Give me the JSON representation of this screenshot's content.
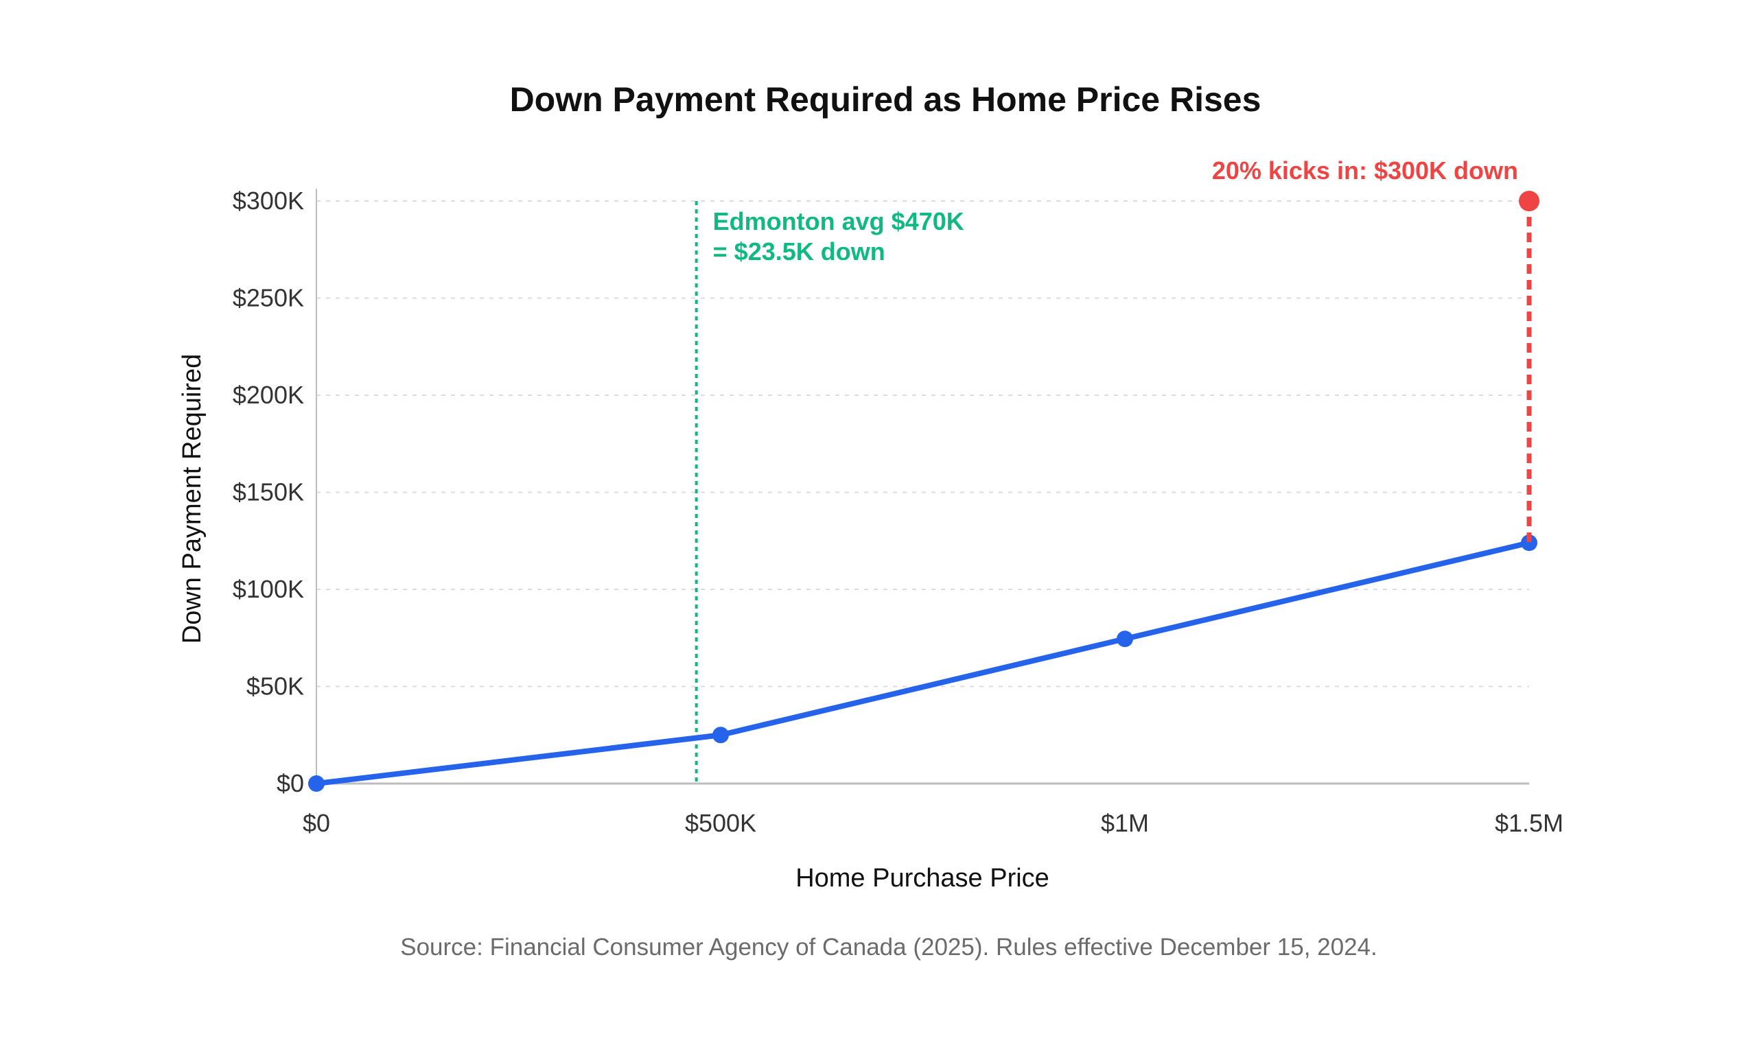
{
  "chart_data": {
    "type": "line",
    "title": "Down Payment Required as Home Price Rises",
    "xlabel": "Home Purchase Price",
    "ylabel": "Down Payment Required",
    "xlim": [
      0,
      1500000
    ],
    "ylim": [
      0,
      300000
    ],
    "x_ticks": [
      {
        "value": 0,
        "label": "$0"
      },
      {
        "value": 500000,
        "label": "$500K"
      },
      {
        "value": 1000000,
        "label": "$1M"
      },
      {
        "value": 1500000,
        "label": "$1.5M"
      }
    ],
    "y_ticks": [
      {
        "value": 0,
        "label": "$0"
      },
      {
        "value": 50000,
        "label": "$50K"
      },
      {
        "value": 100000,
        "label": "$100K"
      },
      {
        "value": 150000,
        "label": "$150K"
      },
      {
        "value": 200000,
        "label": "$200K"
      },
      {
        "value": 250000,
        "label": "$250K"
      },
      {
        "value": 300000,
        "label": "$300K"
      }
    ],
    "grid": true,
    "series": [
      {
        "color": "#2563eb",
        "points": [
          {
            "x": 0,
            "y": 0
          },
          {
            "x": 500000,
            "y": 25000
          },
          {
            "x": 1000000,
            "y": 74500
          },
          {
            "x": 1500000,
            "y": 124000
          }
        ]
      }
    ],
    "reference_line": {
      "x": 470000,
      "color": "#10b981",
      "label_lines": [
        "Edmonton avg $470K",
        "= $23.5K down"
      ]
    },
    "highlight": {
      "x": 1500000,
      "y_from": 124000,
      "y_to": 300000,
      "color": "#ef4444",
      "label": "20% kicks in: $300K down"
    },
    "source": "Source: Financial Consumer Agency of Canada (2025). Rules effective December 15, 2024."
  }
}
